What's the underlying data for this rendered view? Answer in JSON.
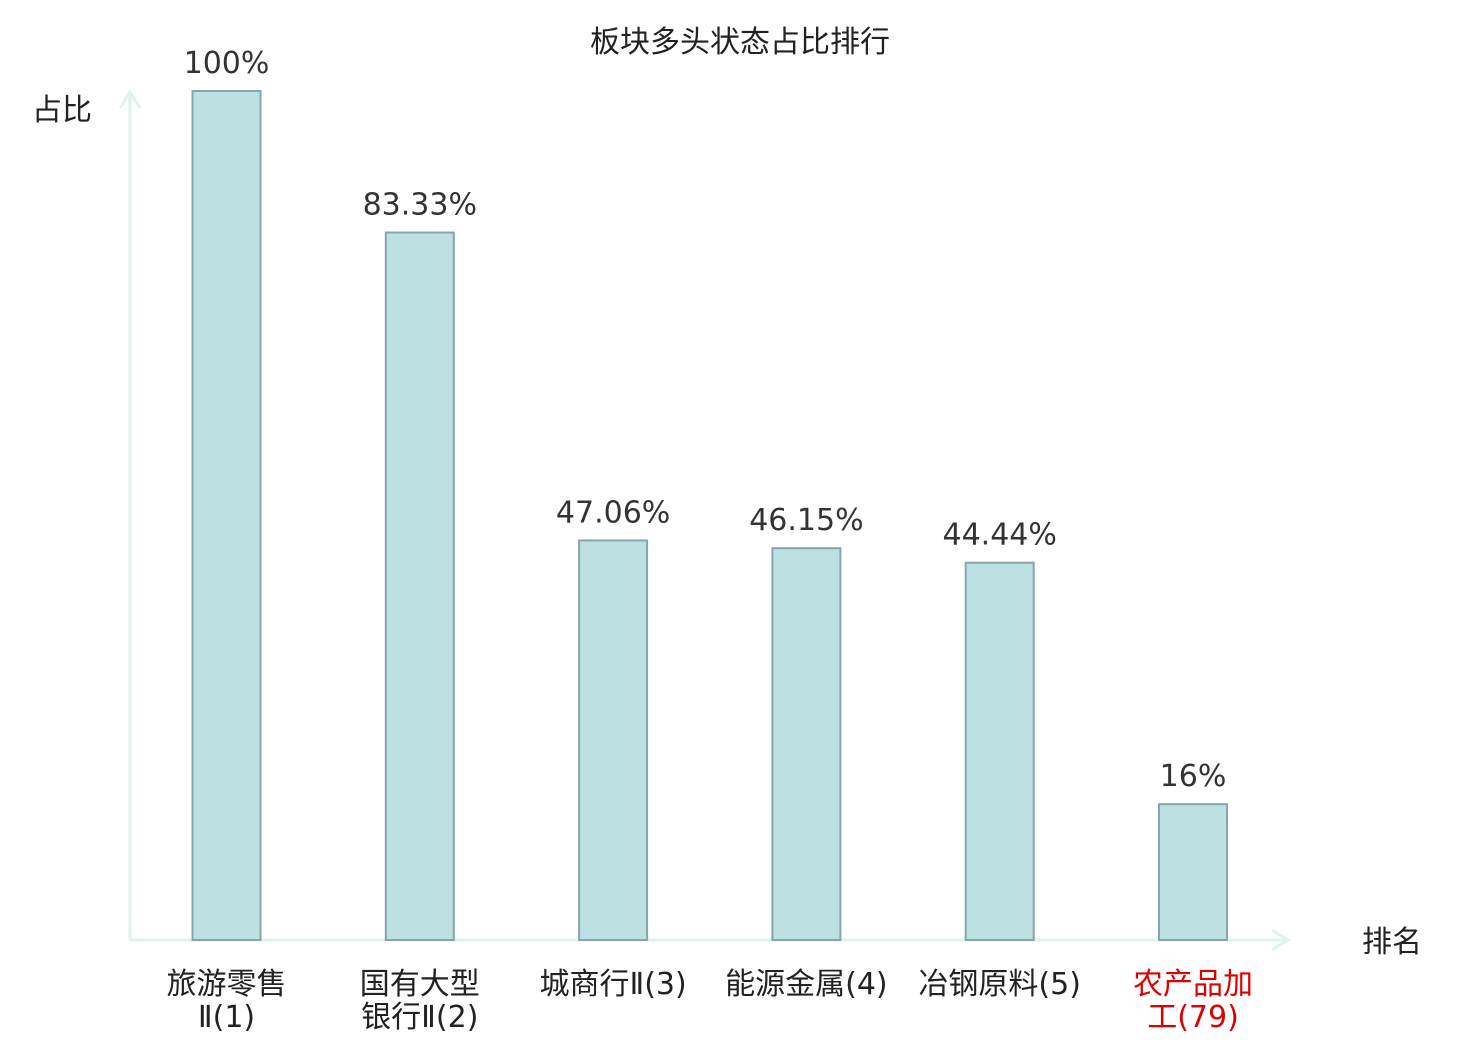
{
  "chart_data": {
    "type": "bar",
    "title": "板块多头状态占比排行",
    "xlabel": "排名",
    "ylabel": "占比",
    "ylim": [
      0,
      100
    ],
    "grid": false,
    "categories": [
      {
        "lines": [
          "旅游零售",
          "Ⅱ(1)"
        ],
        "highlight": false
      },
      {
        "lines": [
          "国有大型",
          "银行Ⅱ(2)"
        ],
        "highlight": false
      },
      {
        "lines": [
          "城商行Ⅱ(3)"
        ],
        "highlight": false
      },
      {
        "lines": [
          "能源金属(4)"
        ],
        "highlight": false
      },
      {
        "lines": [
          "冶钢原料(5)"
        ],
        "highlight": false
      },
      {
        "lines": [
          "农产品加",
          "工(79)"
        ],
        "highlight": true
      }
    ],
    "values": [
      100,
      83.33,
      47.06,
      46.15,
      44.44,
      16
    ],
    "value_labels": [
      "100%",
      "83.33%",
      "47.06%",
      "46.15%",
      "44.44%",
      "16%"
    ]
  },
  "colors": {
    "bar_fill": "#bde0e3",
    "bar_stroke": "#86a6ab",
    "axis": "#e0f2ef",
    "text": "#222222",
    "value_text": "#333333",
    "highlight_text": "#e00000"
  }
}
